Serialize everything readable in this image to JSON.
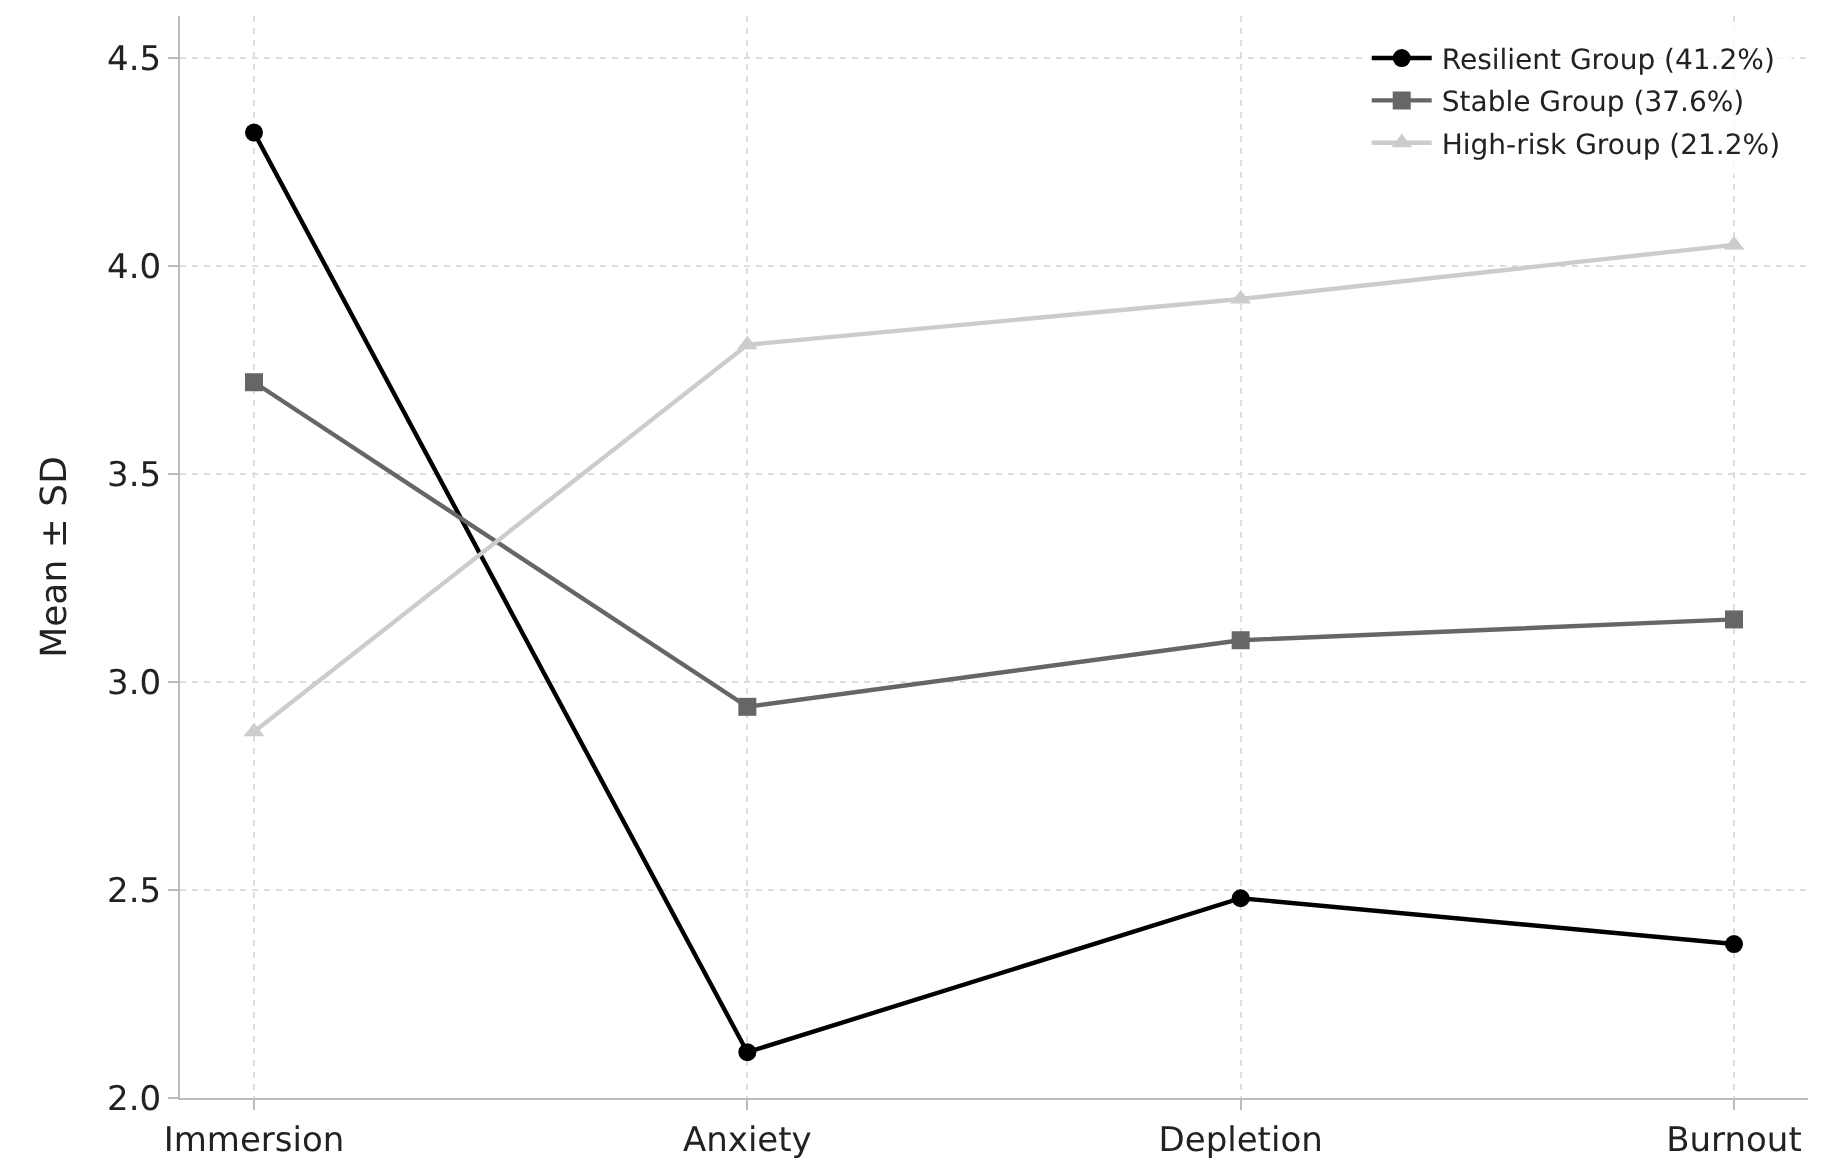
{
  "chart_data": {
    "type": "line",
    "ylabel": "Mean ± SD",
    "categories": [
      "Immersion",
      "Anxiety",
      "Depletion",
      "Burnout"
    ],
    "series": [
      {
        "name": "Resilient Group (41.2%)",
        "color": "#000000",
        "marker": "circle",
        "values": [
          4.32,
          2.11,
          2.48,
          2.37
        ]
      },
      {
        "name": "Stable Group (37.6%)",
        "color": "#666666",
        "marker": "square",
        "values": [
          3.72,
          2.94,
          3.1,
          3.15
        ]
      },
      {
        "name": "High-risk Group (21.2%)",
        "color": "#cccccc",
        "marker": "triangle",
        "values": [
          2.88,
          3.81,
          3.92,
          4.05
        ]
      }
    ],
    "ylim": [
      2.0,
      4.6
    ],
    "yticks": [
      {
        "value": 2.0,
        "label": "2.0"
      },
      {
        "value": 2.5,
        "label": "2.5"
      },
      {
        "value": 3.0,
        "label": "3.0"
      },
      {
        "value": 3.5,
        "label": "3.5"
      },
      {
        "value": 4.0,
        "label": "4.0"
      },
      {
        "value": 4.5,
        "label": "4.5"
      }
    ],
    "grid": true,
    "legend": "top right",
    "line_style": "solid"
  }
}
